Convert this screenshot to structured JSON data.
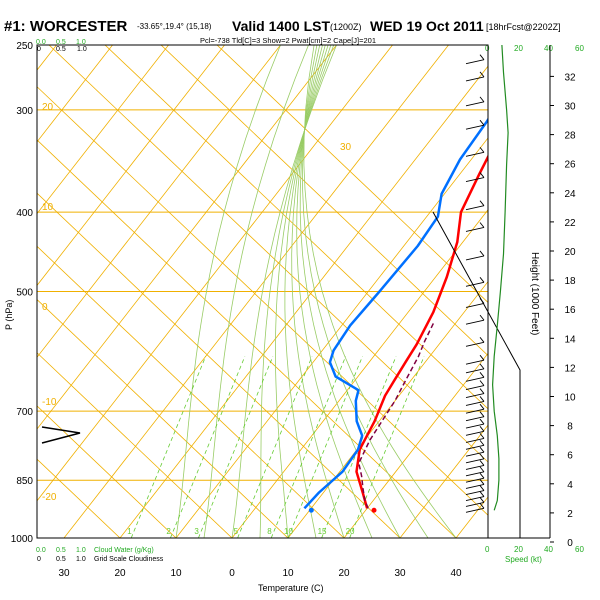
{
  "header": {
    "station": "#1: WORCESTER",
    "coords": "-33.65°,19.4° (15,18)",
    "valid": "Valid 1400 LST",
    "utc": "(1200Z)",
    "date": "WED 19 Oct 2011",
    "forecast": "[18hrFcst@2202Z]",
    "indices": "Pcl=-738 Tld[C]=3 Show=2 Pwat[cm]=2 Cape[J]=201"
  },
  "colors": {
    "temperature": "#ff0000",
    "dewpoint": "#0070ff",
    "parcel": "#800040",
    "isotherm": "#f0b000",
    "dry_adiabat": "#9acd32",
    "moist_adiabat": "#99cc66",
    "mixing_ratio": "#66cc33",
    "wind_speed": "#228b22",
    "cloud": "#000000"
  },
  "chart_data": {
    "type": "line",
    "title": "#1: WORCESTER Valid 1400 LST (1200Z) WED 19 Oct 2011",
    "xlabel": "Temperature (C)",
    "ylabel": "P (hPa)",
    "y2label": "Height (1000 Feet)",
    "xlim": [
      -35,
      45
    ],
    "ylim": [
      1000,
      250
    ],
    "yscale": "log",
    "x_ticks": [
      "30",
      "20",
      "10",
      "0",
      "10",
      "20",
      "30",
      "40"
    ],
    "y_ticks": [
      "250",
      "300",
      "400",
      "500",
      "700",
      "850",
      "1000"
    ],
    "y_tick_values": [
      250,
      300,
      400,
      500,
      700,
      850,
      1000
    ],
    "height_ticks": [
      "0",
      "2",
      "4",
      "6",
      "8",
      "10",
      "12",
      "14",
      "16",
      "18",
      "20",
      "22",
      "24",
      "26",
      "28",
      "30",
      "32"
    ],
    "height_ticks_kft": [
      0,
      2,
      4,
      6,
      8,
      10,
      12,
      14,
      16,
      18,
      20,
      22,
      24,
      26,
      28,
      30,
      32
    ],
    "isotherm_labels": [
      "20",
      "10",
      "0",
      "-10",
      "-20",
      "30"
    ],
    "mixing_ratio_labels": [
      "1",
      "2",
      "3",
      "5",
      "8",
      "10",
      "15",
      "20"
    ],
    "mixing_ratio_values": [
      1,
      2,
      3,
      5,
      8,
      10,
      15,
      20
    ],
    "top_scale": [
      "0.0",
      "0.5",
      "1.0"
    ],
    "bottom_left_labels": [
      "0.0",
      "0.5",
      "1.0",
      "Cloud Water (g/Kg)"
    ],
    "bottom_left_labels2": [
      "0",
      "0.5",
      "1.0",
      "Grid Scale Cloudiness"
    ],
    "top_right_labels": [
      "0",
      "20",
      "40",
      "60"
    ],
    "speed_label": "Speed (kt)",
    "series": [
      {
        "name": "Temperature",
        "color": "#ff0000",
        "points": [
          [
            20.0,
            920
          ],
          [
            17.0,
            880
          ],
          [
            13.0,
            830
          ],
          [
            10.5,
            780
          ],
          [
            9.2,
            720
          ],
          [
            7.5,
            670
          ],
          [
            7.0,
            640
          ],
          [
            6.5,
            610
          ],
          [
            6.0,
            580
          ],
          [
            4.5,
            530
          ],
          [
            2.0,
            480
          ],
          [
            -1.0,
            435
          ],
          [
            -4.5,
            400
          ],
          [
            -6.5,
            360
          ],
          [
            -8.0,
            330
          ],
          [
            -8.5,
            300
          ],
          [
            -7.0,
            275
          ],
          [
            -5.0,
            257
          ]
        ]
      },
      {
        "name": "Dewpoint",
        "color": "#0070ff",
        "points": [
          [
            8.8,
            920
          ],
          [
            9.2,
            880
          ],
          [
            10.5,
            830
          ],
          [
            10.2,
            780
          ],
          [
            9.0,
            750
          ],
          [
            6.0,
            720
          ],
          [
            3.0,
            680
          ],
          [
            2.0,
            660
          ],
          [
            -4.0,
            635
          ],
          [
            -7.0,
            610
          ],
          [
            -8.0,
            590
          ],
          [
            -8.5,
            550
          ],
          [
            -8.0,
            500
          ],
          [
            -7.5,
            440
          ],
          [
            -8.0,
            405
          ],
          [
            -10.5,
            380
          ],
          [
            -12.0,
            345
          ],
          [
            -12.5,
            310
          ],
          [
            -13.5,
            283
          ],
          [
            -17.0,
            258
          ]
        ]
      },
      {
        "name": "Parcel",
        "color": "#800040",
        "points": [
          [
            20.2,
            920
          ],
          [
            18.5,
            900
          ],
          [
            16.5,
            870
          ],
          [
            14.5,
            840
          ],
          [
            12.2,
            810
          ],
          [
            11.0,
            760
          ],
          [
            10.5,
            720
          ],
          [
            10.0,
            680
          ],
          [
            9.0,
            640
          ],
          [
            8.0,
            600
          ],
          [
            7.0,
            575
          ],
          [
            6.0,
            545
          ]
        ]
      },
      {
        "name": "Speed (kt)",
        "color": "#228b22",
        "points": [
          [
            4,
            925
          ],
          [
            6,
            900
          ],
          [
            7,
            850
          ],
          [
            7,
            800
          ],
          [
            6,
            750
          ],
          [
            4,
            700
          ],
          [
            3,
            650
          ],
          [
            4,
            600
          ],
          [
            6,
            550
          ],
          [
            8,
            500
          ],
          [
            10,
            450
          ],
          [
            11,
            400
          ],
          [
            12,
            350
          ],
          [
            13,
            320
          ],
          [
            12,
            300
          ],
          [
            10,
            270
          ],
          [
            9,
            250
          ]
        ]
      }
    ],
    "surface_markers": [
      {
        "name": "Temperature",
        "value": 21.5,
        "pressure": 925
      },
      {
        "name": "Dewpoint",
        "value": 10.3,
        "pressure": 925
      }
    ],
    "winds_kt": [
      [
        925,
        10
      ],
      [
        910,
        10
      ],
      [
        895,
        10
      ],
      [
        880,
        10
      ],
      [
        865,
        10
      ],
      [
        850,
        10
      ],
      [
        835,
        10
      ],
      [
        820,
        10
      ],
      [
        805,
        10
      ],
      [
        790,
        10
      ],
      [
        775,
        10
      ],
      [
        760,
        10
      ],
      [
        745,
        10
      ],
      [
        730,
        10
      ],
      [
        715,
        10
      ],
      [
        700,
        10
      ],
      [
        685,
        10
      ],
      [
        670,
        10
      ],
      [
        655,
        10
      ],
      [
        640,
        10
      ],
      [
        625,
        10
      ],
      [
        610,
        10
      ],
      [
        580,
        10
      ],
      [
        545,
        10
      ],
      [
        520,
        10
      ],
      [
        490,
        10
      ],
      [
        455,
        10
      ],
      [
        420,
        10
      ],
      [
        395,
        10
      ],
      [
        365,
        10
      ],
      [
        340,
        10
      ],
      [
        315,
        10
      ],
      [
        295,
        10
      ],
      [
        275,
        10
      ],
      [
        262,
        10
      ]
    ],
    "grid": true,
    "legend": "none"
  }
}
